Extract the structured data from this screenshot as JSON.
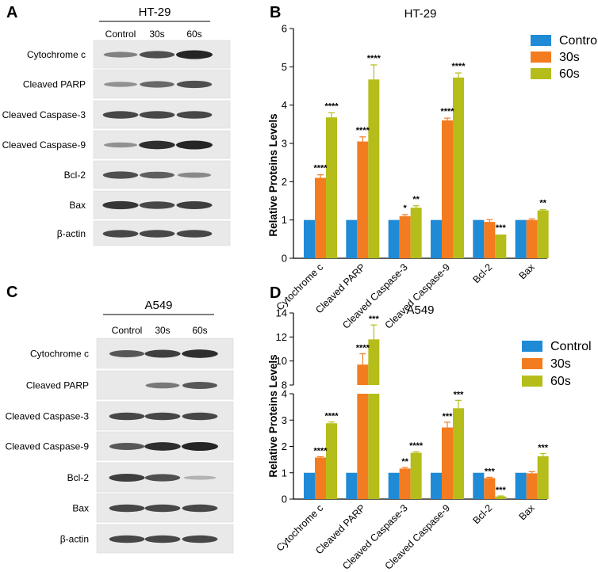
{
  "panel_labels": [
    "A",
    "B",
    "C",
    "D"
  ],
  "blots": [
    {
      "cell_line": "HT-29",
      "columns": [
        "Control",
        "30s",
        "60s"
      ],
      "rows": [
        "Cytochrome c",
        "Cleaved PARP",
        "Cleaved Caspase-3",
        "Cleaved Caspase-9",
        "Bcl-2",
        "Bax",
        "β-actin"
      ],
      "band_intensity": [
        [
          0.45,
          0.75,
          1.0
        ],
        [
          0.35,
          0.6,
          0.75
        ],
        [
          0.8,
          0.8,
          0.8
        ],
        [
          0.35,
          0.95,
          1.0
        ],
        [
          0.75,
          0.65,
          0.4
        ],
        [
          0.9,
          0.8,
          0.85
        ],
        [
          0.8,
          0.8,
          0.8
        ]
      ]
    },
    {
      "cell_line": "A549",
      "columns": [
        "Control",
        "30s",
        "60s"
      ],
      "rows": [
        "Cytochrome c",
        "Cleaved PARP",
        "Cleaved Caspase-3",
        "Cleaved Caspase-9",
        "Bcl-2",
        "Bax",
        "β-actin"
      ],
      "band_intensity": [
        [
          0.7,
          0.85,
          0.95
        ],
        [
          0.0,
          0.5,
          0.7
        ],
        [
          0.8,
          0.8,
          0.8
        ],
        [
          0.7,
          0.95,
          1.0
        ],
        [
          0.85,
          0.75,
          0.15
        ],
        [
          0.8,
          0.8,
          0.8
        ],
        [
          0.8,
          0.8,
          0.8
        ]
      ]
    }
  ],
  "chart_data": [
    {
      "type": "bar",
      "title": "HT-29",
      "ylabel": "Relative Proteins Levels",
      "xlabel": "",
      "ylim": [
        0,
        6
      ],
      "yticks": [
        0,
        1,
        2,
        3,
        4,
        5,
        6
      ],
      "legend_position": "top-right",
      "categories": [
        "Cytochrome c",
        "Cleaved PARP",
        "Cleaved Caspase-3",
        "Cleaved Caspase-9",
        "Bcl-2",
        "Bax"
      ],
      "series": [
        {
          "name": "Control",
          "color": "#1f8ad6",
          "values": [
            1,
            1,
            1,
            1,
            1,
            1
          ],
          "errors": [
            0,
            0,
            0,
            0,
            0,
            0
          ]
        },
        {
          "name": "30s",
          "color": "#f47c20",
          "values": [
            2.1,
            3.05,
            1.1,
            3.6,
            0.95,
            1.0
          ],
          "errors": [
            0.08,
            0.12,
            0.04,
            0.06,
            0.06,
            0.03
          ]
        },
        {
          "name": "60s",
          "color": "#b5bd1a",
          "values": [
            3.68,
            4.67,
            1.32,
            4.72,
            0.62,
            1.25
          ],
          "errors": [
            0.12,
            0.38,
            0.05,
            0.12,
            0.0,
            0.02
          ]
        }
      ],
      "significance": [
        {
          "category": 0,
          "series": 1,
          "label": "****"
        },
        {
          "category": 0,
          "series": 2,
          "label": "****"
        },
        {
          "category": 1,
          "series": 1,
          "label": "****"
        },
        {
          "category": 1,
          "series": 2,
          "label": "****"
        },
        {
          "category": 2,
          "series": 1,
          "label": "*"
        },
        {
          "category": 2,
          "series": 2,
          "label": "**"
        },
        {
          "category": 3,
          "series": 1,
          "label": "****"
        },
        {
          "category": 3,
          "series": 2,
          "label": "****"
        },
        {
          "category": 4,
          "series": 2,
          "label": "***"
        },
        {
          "category": 5,
          "series": 2,
          "label": "**"
        }
      ]
    },
    {
      "type": "bar",
      "title": "A549",
      "ylabel": "Relative Proteins Levels",
      "xlabel": "",
      "axis_break": {
        "lower": [
          0,
          4
        ],
        "upper": [
          8,
          14
        ]
      },
      "yticks_lower": [
        0,
        1,
        2,
        3,
        4
      ],
      "yticks_upper": [
        8,
        10,
        12,
        14
      ],
      "legend_position": "top-right",
      "categories": [
        "Cytochrome c",
        "Cleaved PARP",
        "Cleaved Caspase-3",
        "Cleaved Caspase-9",
        "Bcl-2",
        "Bax"
      ],
      "series": [
        {
          "name": "Control",
          "color": "#1f8ad6",
          "values": [
            1,
            1,
            1,
            1,
            1,
            1
          ],
          "errors": [
            0,
            0,
            0,
            0,
            0,
            0
          ]
        },
        {
          "name": "30s",
          "color": "#f47c20",
          "values": [
            1.58,
            9.7,
            1.16,
            2.72,
            0.8,
            0.98
          ],
          "errors": [
            0.03,
            0.9,
            0.04,
            0.2,
            0.03,
            0.06
          ]
        },
        {
          "name": "60s",
          "color": "#b5bd1a",
          "values": [
            2.88,
            11.8,
            1.76,
            3.45,
            0.1,
            1.63
          ],
          "errors": [
            0.05,
            1.2,
            0.04,
            0.3,
            0.02,
            0.1
          ]
        }
      ],
      "significance": [
        {
          "category": 0,
          "series": 1,
          "label": "****"
        },
        {
          "category": 0,
          "series": 2,
          "label": "****"
        },
        {
          "category": 1,
          "series": 1,
          "label": "****"
        },
        {
          "category": 1,
          "series": 2,
          "label": "***"
        },
        {
          "category": 2,
          "series": 1,
          "label": "**"
        },
        {
          "category": 2,
          "series": 2,
          "label": "****"
        },
        {
          "category": 3,
          "series": 1,
          "label": "***"
        },
        {
          "category": 3,
          "series": 2,
          "label": "***"
        },
        {
          "category": 4,
          "series": 1,
          "label": "***"
        },
        {
          "category": 4,
          "series": 2,
          "label": "***"
        },
        {
          "category": 5,
          "series": 2,
          "label": "***"
        }
      ]
    }
  ]
}
